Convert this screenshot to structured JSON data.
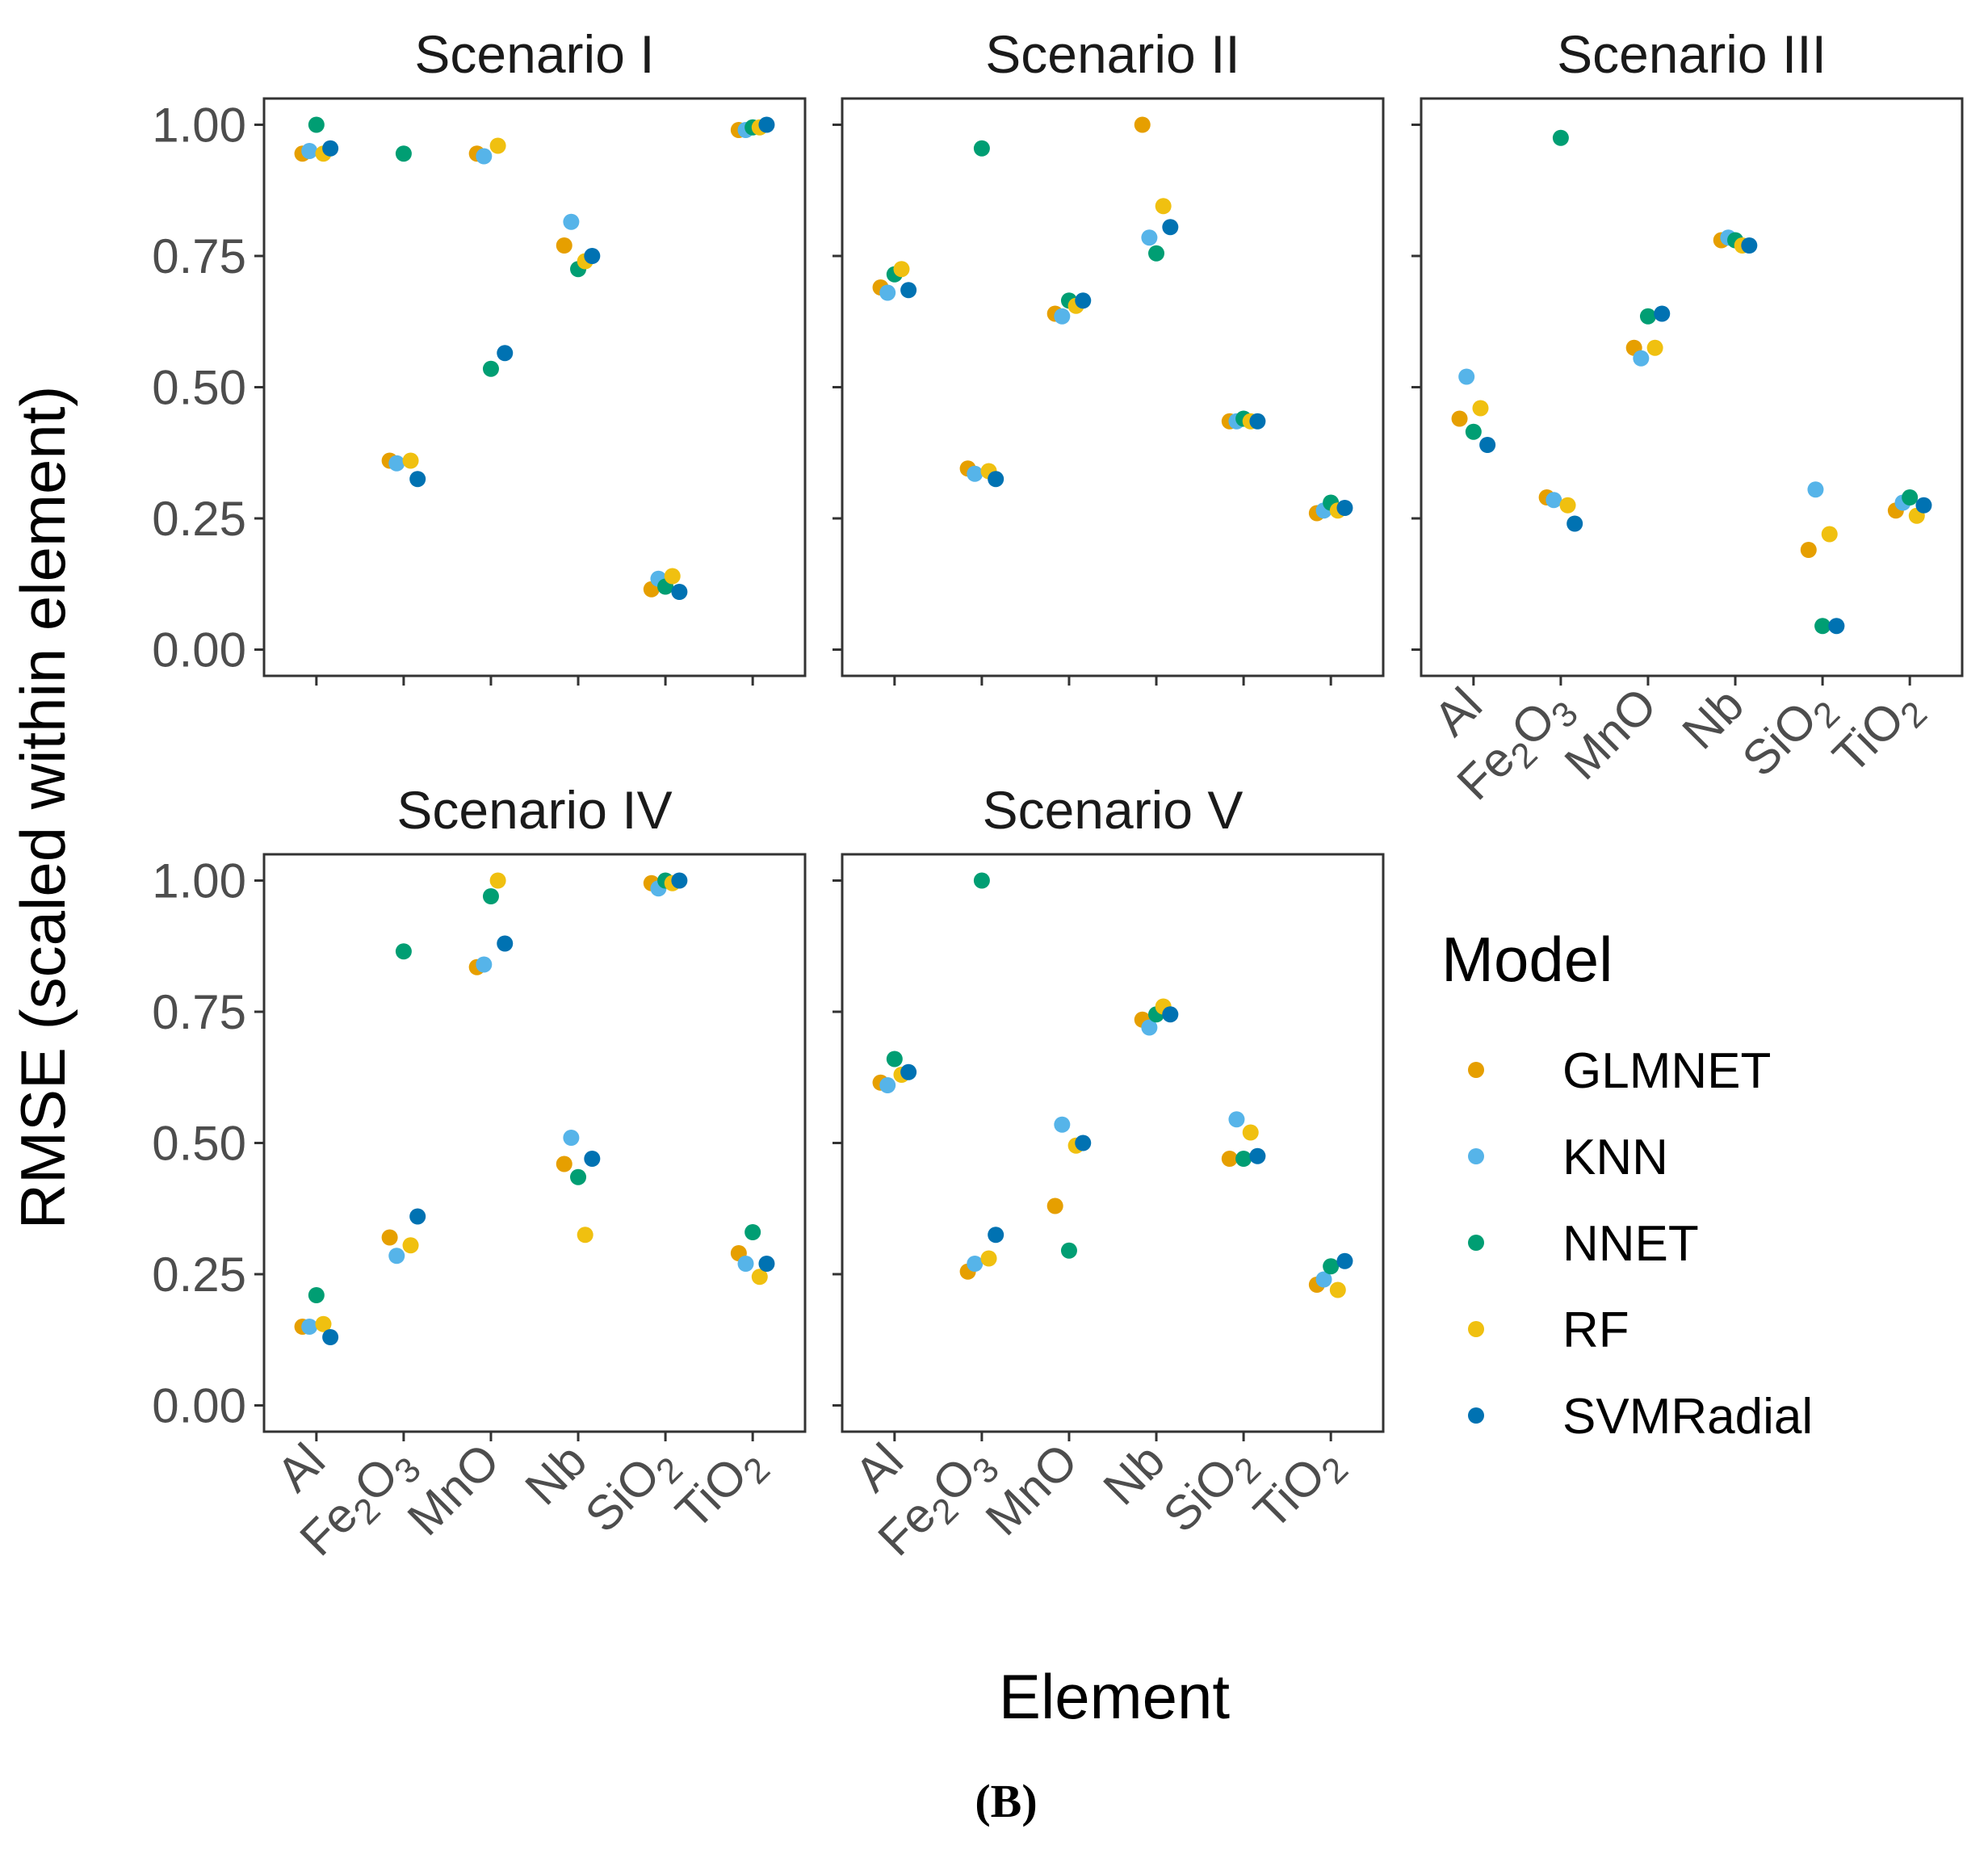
{
  "chart_data": {
    "type": "scatter",
    "ylabel": "RMSE (scaled within element)",
    "xlabel": "Element",
    "caption": "(B)",
    "ylim": [
      0,
      1
    ],
    "y_ticks": [
      "0.00",
      "0.25",
      "0.50",
      "0.75",
      "1.00"
    ],
    "y_tick_values": [
      0,
      0.25,
      0.5,
      0.75,
      1.0
    ],
    "grid": false,
    "legend_position": "right",
    "categories": [
      {
        "base": "Al",
        "sub": ""
      },
      {
        "base": "Fe",
        "sub": "2",
        "base2": "O",
        "sub2": "3"
      },
      {
        "base": "MnO",
        "sub": ""
      },
      {
        "base": "Nb",
        "sub": ""
      },
      {
        "base": "SiO",
        "sub": "2"
      },
      {
        "base": "TiO",
        "sub": "2"
      }
    ],
    "legend": {
      "title": "Model",
      "items": [
        {
          "name": "GLMNET",
          "color": "#E69F00"
        },
        {
          "name": "KNN",
          "color": "#56B4E9"
        },
        {
          "name": "NNET",
          "color": "#009E73"
        },
        {
          "name": "RF",
          "color": "#F0C010"
        },
        {
          "name": "SVMRadial",
          "color": "#0072B2"
        }
      ]
    },
    "panels": [
      {
        "title": "Scenario I",
        "series": {
          "GLMNET": [
            0.945,
            0.36,
            0.945,
            0.77,
            0.115,
            0.99
          ],
          "KNN": [
            0.95,
            0.355,
            0.94,
            0.815,
            0.135,
            0.99
          ],
          "NNET": [
            1.0,
            0.945,
            0.535,
            0.725,
            0.12,
            0.995
          ],
          "RF": [
            0.945,
            0.36,
            0.96,
            0.74,
            0.14,
            0.995
          ],
          "SVMRadial": [
            0.955,
            0.325,
            0.565,
            0.75,
            0.11,
            1.0
          ]
        }
      },
      {
        "title": "Scenario II",
        "series": {
          "GLMNET": [
            0.69,
            0.345,
            0.64,
            1.0,
            0.435,
            0.26
          ],
          "KNN": [
            0.68,
            0.335,
            0.635,
            0.785,
            0.435,
            0.265
          ],
          "NNET": [
            0.715,
            0.955,
            0.665,
            0.755,
            0.44,
            0.28
          ],
          "RF": [
            0.725,
            0.34,
            0.655,
            0.845,
            0.435,
            0.265
          ],
          "SVMRadial": [
            0.685,
            0.325,
            0.665,
            0.805,
            0.435,
            0.27
          ]
        }
      },
      {
        "title": "Scenario III",
        "series": {
          "GLMNET": [
            0.44,
            0.29,
            0.575,
            0.78,
            0.19,
            0.265
          ],
          "KNN": [
            0.52,
            0.285,
            0.555,
            0.785,
            0.305,
            0.28
          ],
          "NNET": [
            0.415,
            0.975,
            0.635,
            0.78,
            0.045,
            0.29
          ],
          "RF": [
            0.46,
            0.275,
            0.575,
            0.77,
            0.22,
            0.255
          ],
          "SVMRadial": [
            0.39,
            0.24,
            0.64,
            0.77,
            0.045,
            0.275
          ]
        }
      },
      {
        "title": "Scenario IV",
        "series": {
          "GLMNET": [
            0.15,
            0.32,
            0.835,
            0.46,
            0.995,
            0.29
          ],
          "KNN": [
            0.15,
            0.285,
            0.84,
            0.51,
            0.985,
            0.27
          ],
          "NNET": [
            0.21,
            0.865,
            0.97,
            0.435,
            1.0,
            0.33
          ],
          "RF": [
            0.155,
            0.305,
            1.0,
            0.325,
            0.995,
            0.245
          ],
          "SVMRadial": [
            0.13,
            0.36,
            0.88,
            0.47,
            1.0,
            0.27
          ]
        }
      },
      {
        "title": "Scenario V",
        "series": {
          "GLMNET": [
            0.615,
            0.255,
            0.38,
            0.735,
            0.47,
            0.23
          ],
          "KNN": [
            0.61,
            0.27,
            0.535,
            0.72,
            0.545,
            0.24
          ],
          "NNET": [
            0.66,
            1.0,
            0.295,
            0.745,
            0.47,
            0.265
          ],
          "RF": [
            0.63,
            0.28,
            0.495,
            0.76,
            0.52,
            0.22
          ],
          "SVMRadial": [
            0.635,
            0.325,
            0.5,
            0.745,
            0.475,
            0.275
          ]
        }
      }
    ]
  }
}
